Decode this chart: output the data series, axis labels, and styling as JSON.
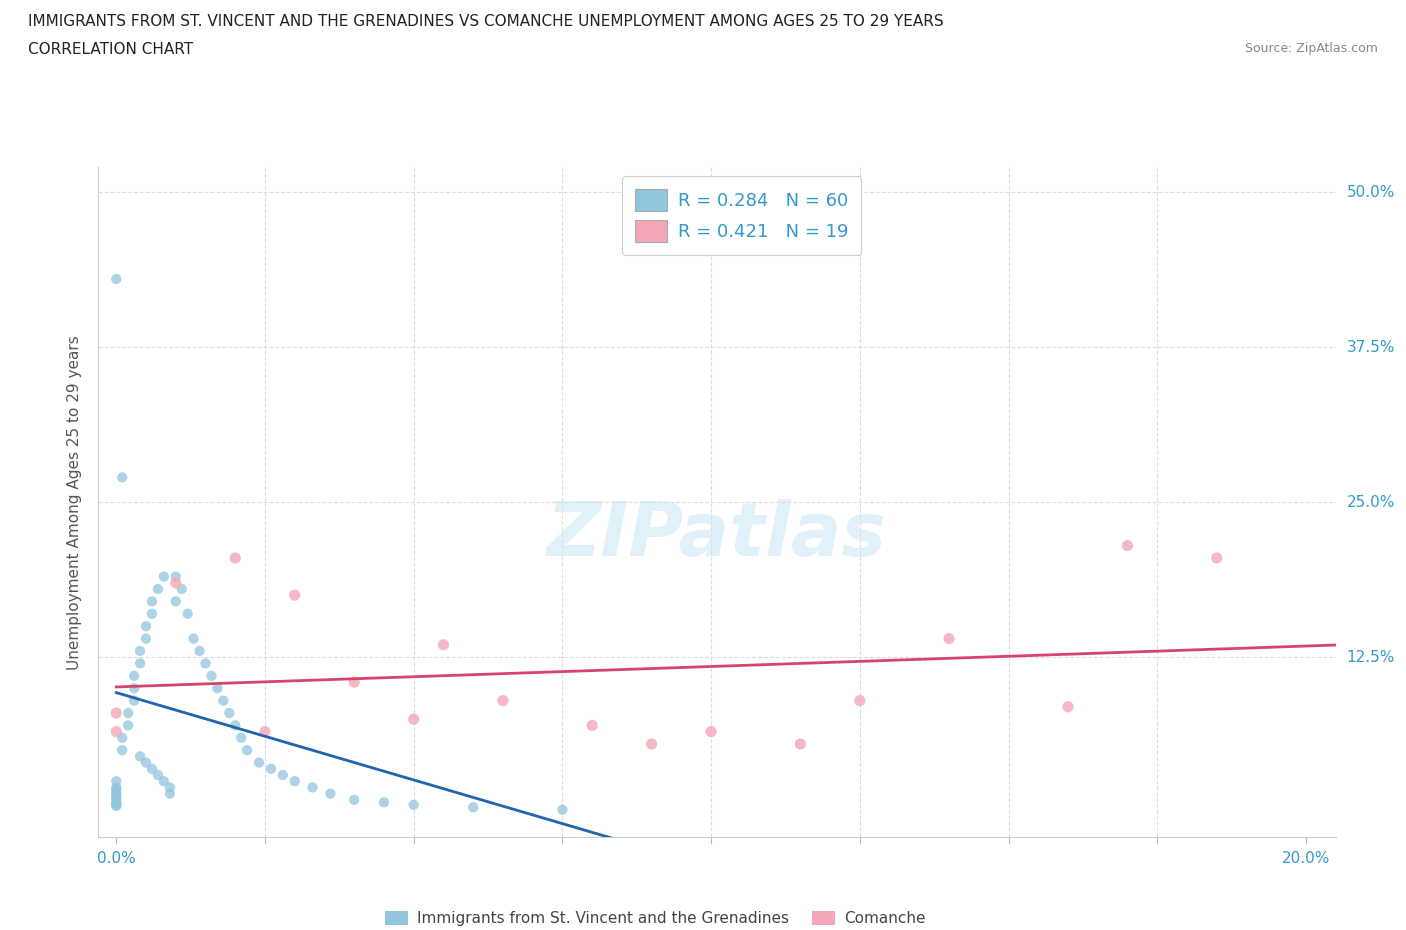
{
  "title_line1": "IMMIGRANTS FROM ST. VINCENT AND THE GRENADINES VS COMANCHE UNEMPLOYMENT AMONG AGES 25 TO 29 YEARS",
  "title_line2": "CORRELATION CHART",
  "source": "Source: ZipAtlas.com",
  "ylabel": "Unemployment Among Ages 25 to 29 years",
  "xlim": [
    -0.003,
    0.205
  ],
  "ylim": [
    -0.02,
    0.52
  ],
  "xticks": [
    0.0,
    0.025,
    0.05,
    0.075,
    0.1,
    0.125,
    0.15,
    0.175,
    0.2
  ],
  "yticks": [
    0.0,
    0.125,
    0.25,
    0.375,
    0.5
  ],
  "ytick_labels": [
    "",
    "12.5%",
    "25.0%",
    "37.5%",
    "50.0%"
  ],
  "blue_color": "#92c5de",
  "blue_line_color": "#2166ac",
  "pink_color": "#f4a6b8",
  "pink_line_color": "#d6436e",
  "R_blue": 0.284,
  "N_blue": 60,
  "R_pink": 0.421,
  "N_pink": 19,
  "legend_label_blue": "Immigrants from St. Vincent and the Grenadines",
  "legend_label_pink": "Comanche",
  "watermark": "ZIPatlas",
  "blue_x": [
    0.0,
    0.0,
    0.0,
    0.0,
    0.0,
    0.0,
    0.0,
    0.0,
    0.0,
    0.0,
    0.0,
    0.0,
    0.001,
    0.001,
    0.001,
    0.002,
    0.002,
    0.003,
    0.003,
    0.003,
    0.004,
    0.004,
    0.004,
    0.005,
    0.005,
    0.005,
    0.006,
    0.006,
    0.006,
    0.007,
    0.007,
    0.008,
    0.008,
    0.009,
    0.009,
    0.01,
    0.01,
    0.011,
    0.012,
    0.013,
    0.014,
    0.015,
    0.016,
    0.017,
    0.018,
    0.019,
    0.02,
    0.021,
    0.022,
    0.024,
    0.026,
    0.028,
    0.03,
    0.033,
    0.036,
    0.04,
    0.045,
    0.05,
    0.06,
    0.075
  ],
  "blue_y": [
    0.005,
    0.006,
    0.007,
    0.008,
    0.01,
    0.012,
    0.014,
    0.016,
    0.018,
    0.02,
    0.025,
    0.43,
    0.27,
    0.05,
    0.06,
    0.07,
    0.08,
    0.09,
    0.1,
    0.11,
    0.12,
    0.13,
    0.045,
    0.14,
    0.15,
    0.04,
    0.035,
    0.16,
    0.17,
    0.03,
    0.18,
    0.025,
    0.19,
    0.02,
    0.015,
    0.17,
    0.19,
    0.18,
    0.16,
    0.14,
    0.13,
    0.12,
    0.11,
    0.1,
    0.09,
    0.08,
    0.07,
    0.06,
    0.05,
    0.04,
    0.035,
    0.03,
    0.025,
    0.02,
    0.015,
    0.01,
    0.008,
    0.006,
    0.004,
    0.002
  ],
  "pink_x": [
    0.0,
    0.0,
    0.01,
    0.02,
    0.025,
    0.03,
    0.04,
    0.05,
    0.055,
    0.065,
    0.08,
    0.09,
    0.1,
    0.115,
    0.125,
    0.14,
    0.16,
    0.17,
    0.185
  ],
  "pink_y": [
    0.08,
    0.065,
    0.185,
    0.205,
    0.065,
    0.175,
    0.105,
    0.075,
    0.135,
    0.09,
    0.07,
    0.055,
    0.065,
    0.055,
    0.09,
    0.14,
    0.085,
    0.215,
    0.205
  ]
}
